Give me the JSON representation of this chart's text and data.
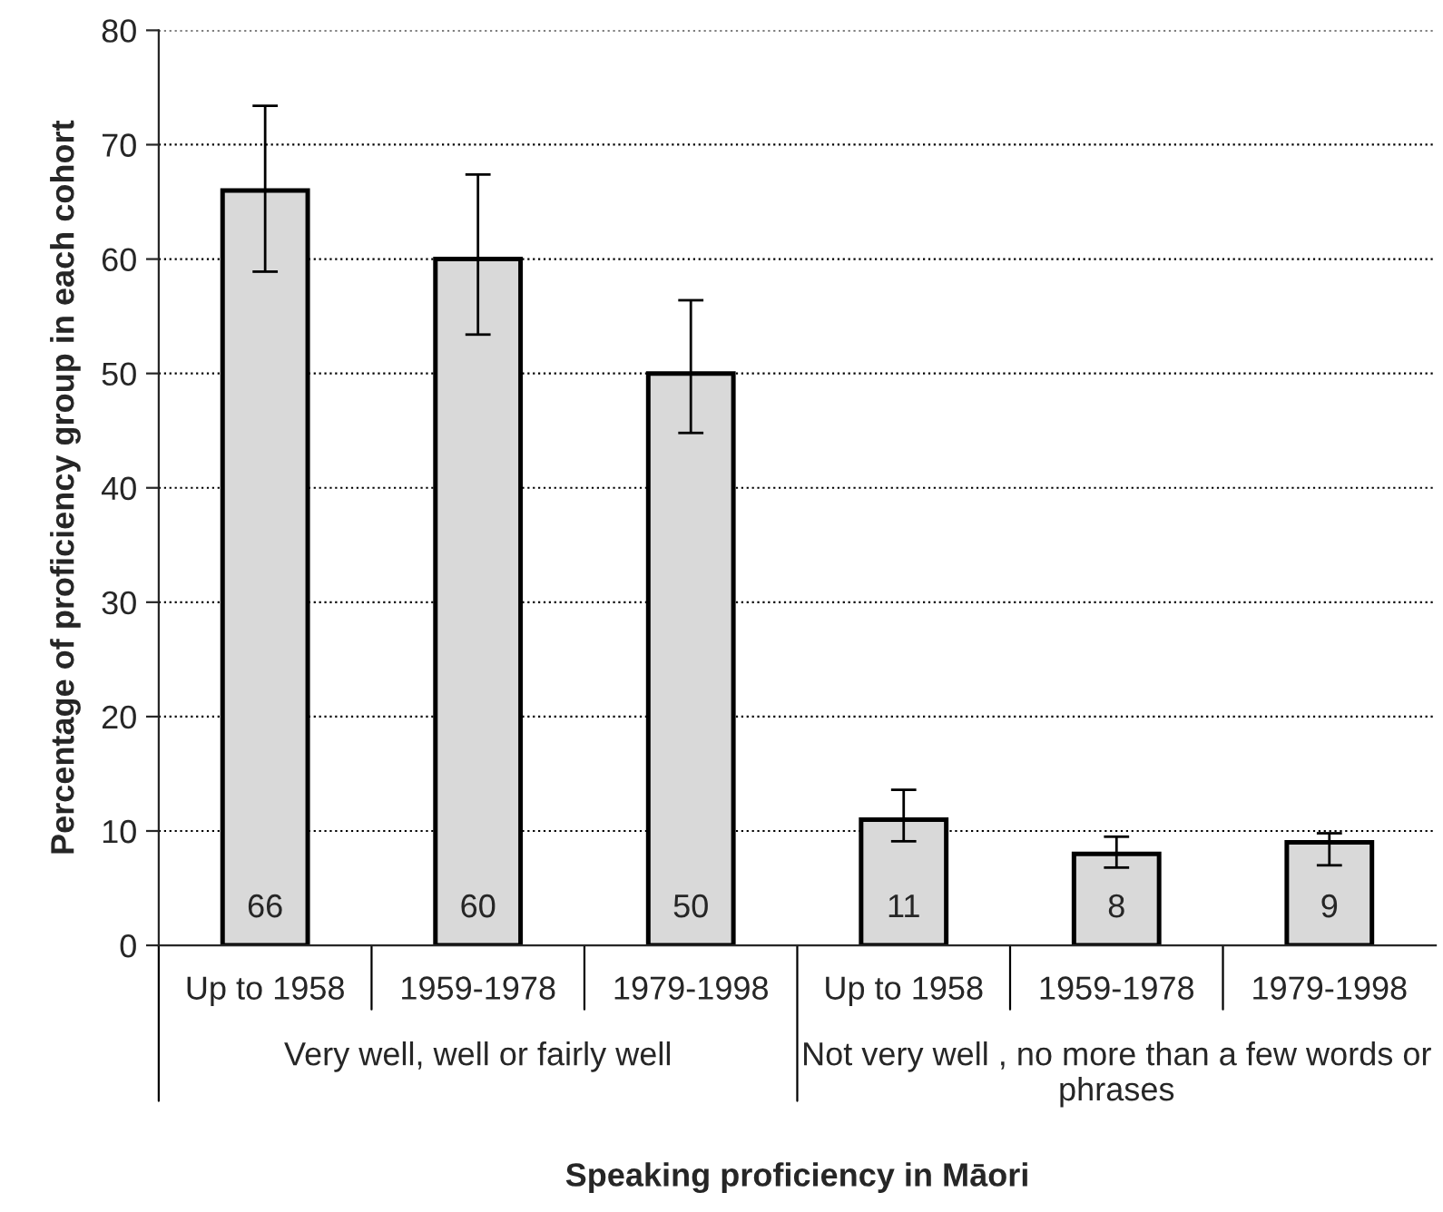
{
  "chart_data": {
    "type": "bar",
    "categories": [
      "Up to 1958",
      "1959-1978",
      "1979-1998",
      "Up to 1958",
      "1959-1978",
      "1979-1998"
    ],
    "values": [
      66,
      60,
      50,
      11,
      8,
      9
    ],
    "errors": [
      [
        58.9,
        73.4
      ],
      [
        53.4,
        67.4
      ],
      [
        44.8,
        56.4
      ],
      [
        9.1,
        13.6
      ],
      [
        6.8,
        9.5
      ],
      [
        7.0,
        9.8
      ]
    ],
    "color": "#d9d9d9",
    "data_labels": true,
    "ylabel": "Percentage of proficiency group in each cohort",
    "xlabel": "Speaking proficiency in Māori",
    "annotations": [
      "Very well, well or fairly well",
      "Not very well , no more than a few words or phrases"
    ],
    "ylim": [
      0,
      80
    ],
    "yticks": [
      0,
      10,
      20,
      30,
      40,
      50,
      60,
      70,
      80
    ],
    "grid": "y",
    "line_style": "dotted"
  }
}
